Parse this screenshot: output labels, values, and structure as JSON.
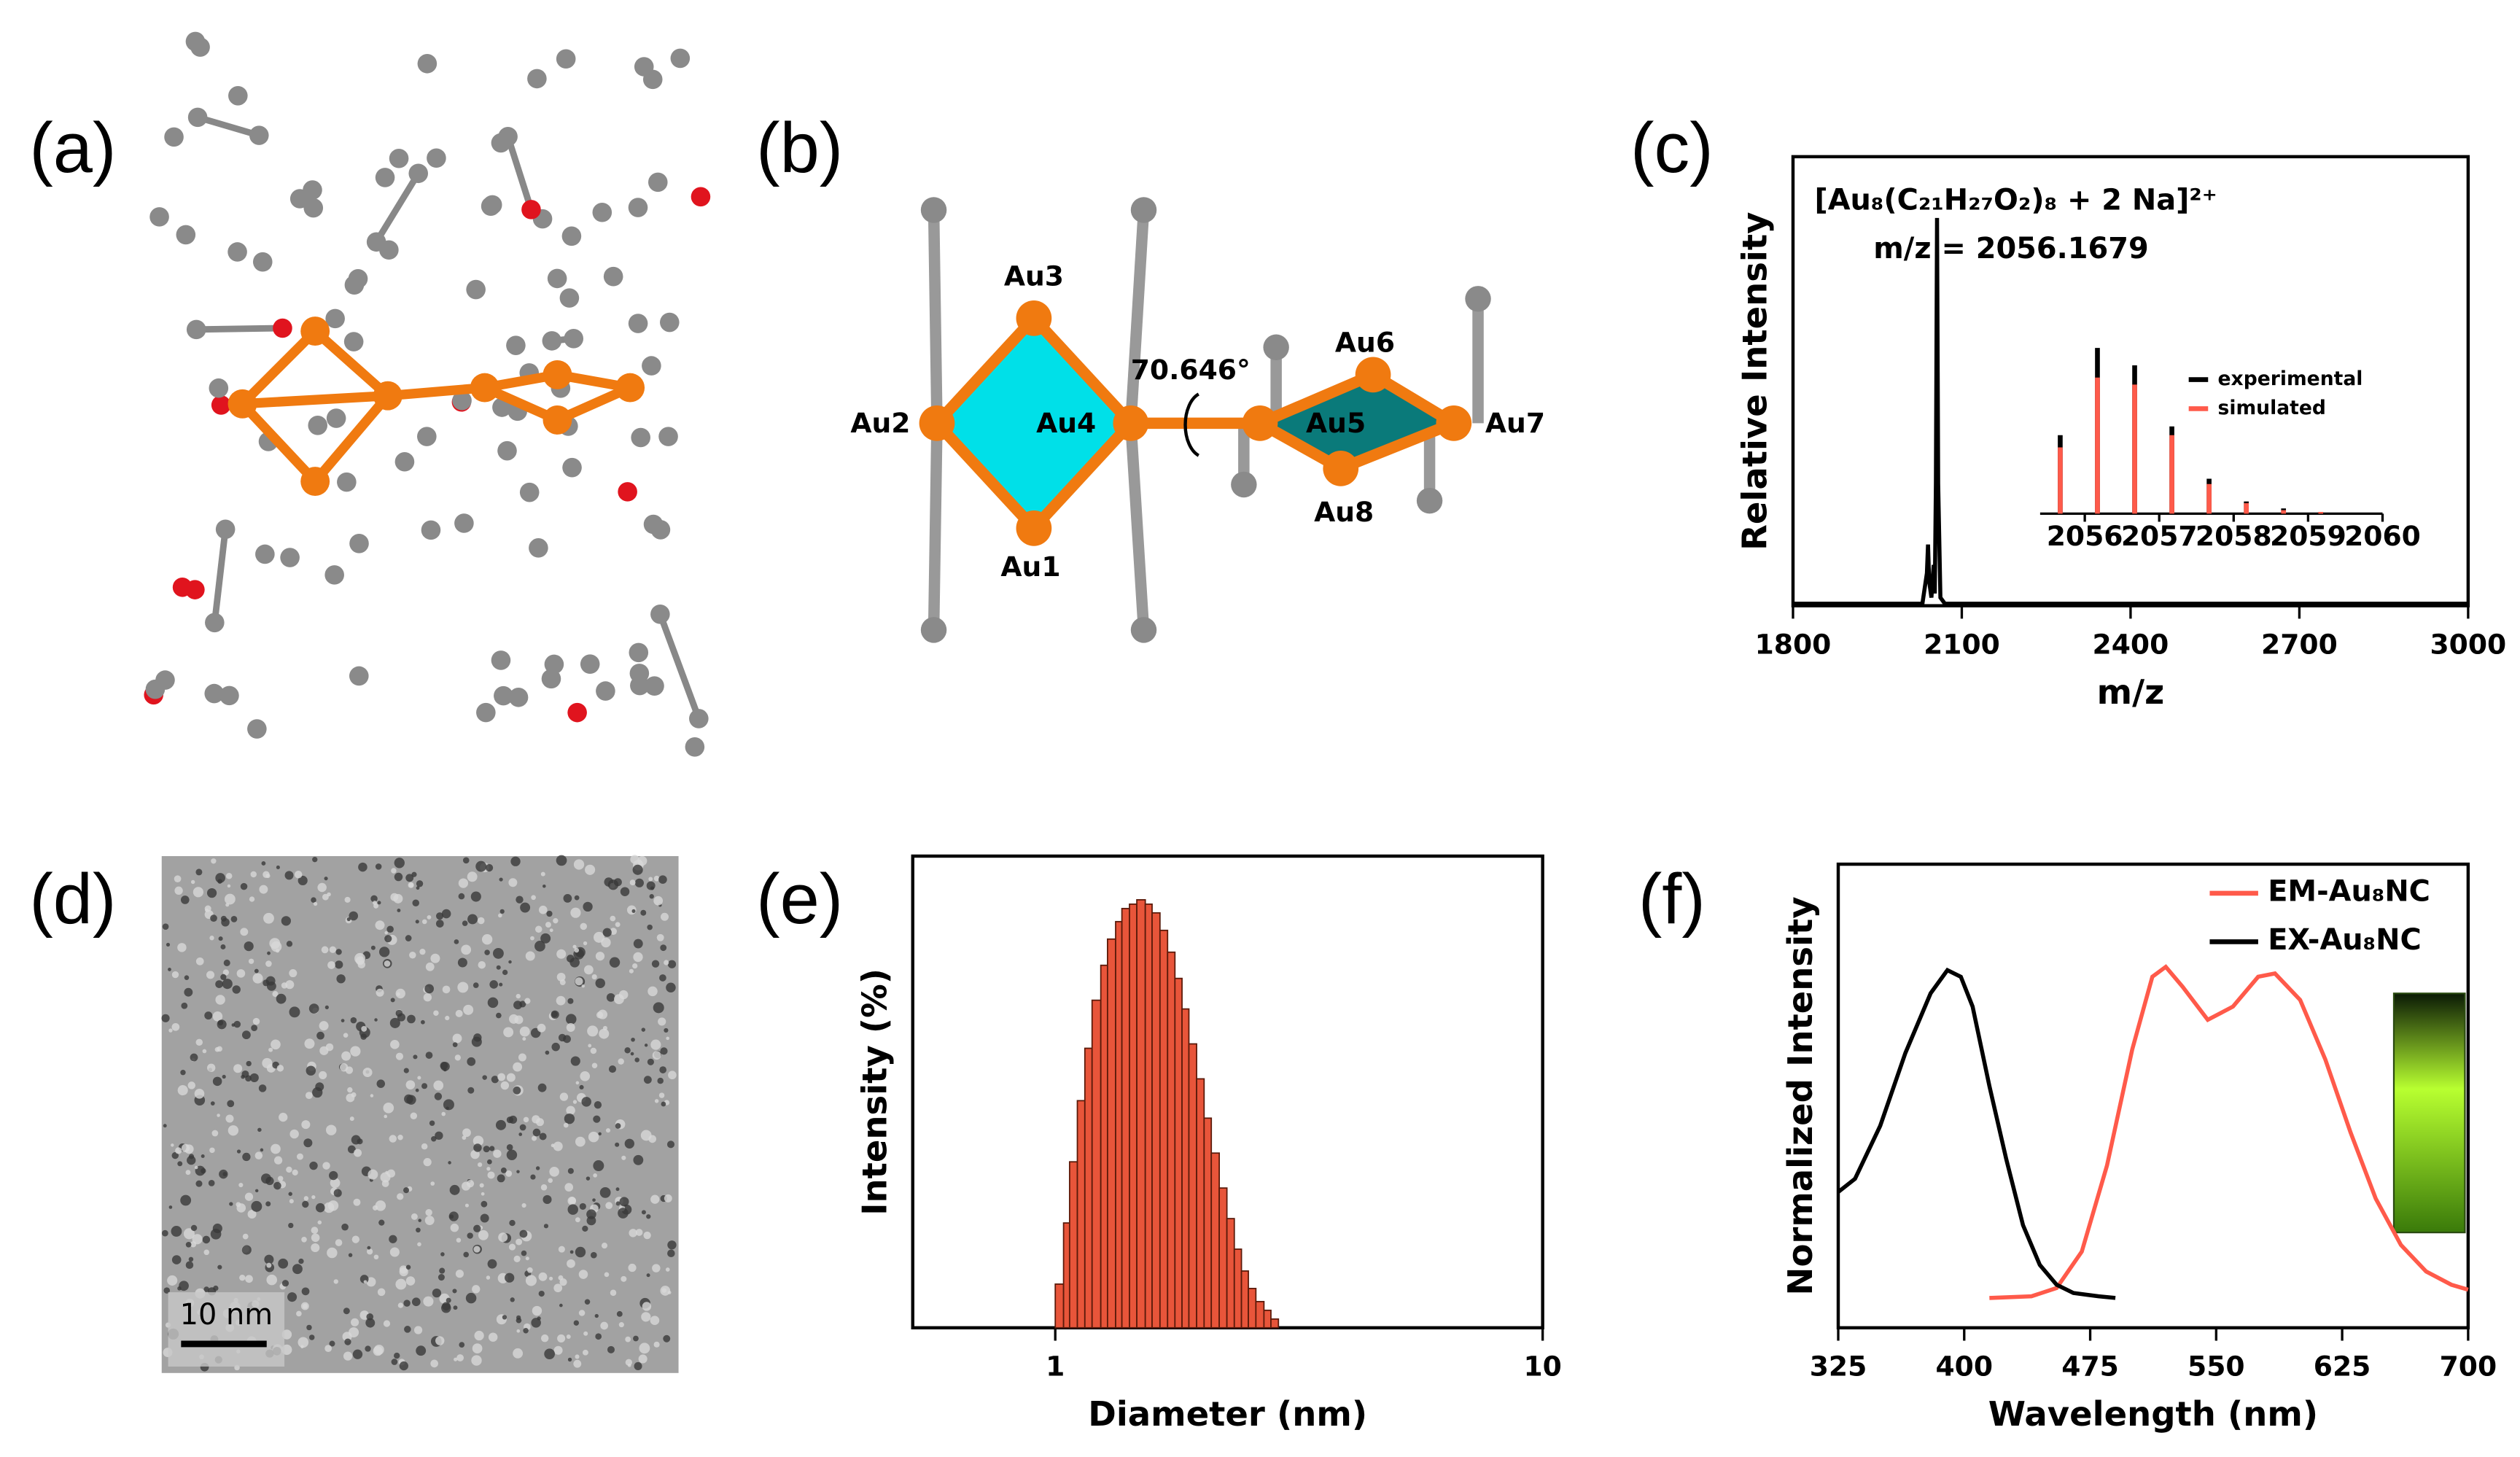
{
  "panel_labels": [
    "(a)",
    "(b)",
    "(c)",
    "(d)",
    "(e)",
    "(f)"
  ],
  "structure_b": {
    "labels": [
      "Au1",
      "Au2",
      "Au3",
      "Au4",
      "Au5",
      "Au6",
      "Au7",
      "Au8"
    ],
    "angle": "70.646°"
  },
  "tem_d": {
    "scale_bar": "10 nm"
  },
  "chart_data": [
    {
      "type": "line",
      "xlabel": "m/z",
      "ylabel": "Relative Intensity",
      "annotations": [
        "[Au₈(C₂₁H₂₇O₂)₈ + 2 Na]²⁺",
        "m/z = 2056.1679"
      ],
      "x": [
        1800,
        2030,
        2038,
        2040,
        2042,
        2046,
        2050,
        2052,
        2054,
        2056,
        2058,
        2062,
        2070,
        3000
      ],
      "values": [
        0.005,
        0.005,
        0.08,
        0.15,
        0.06,
        0.02,
        0.1,
        0.03,
        0.3,
        0.95,
        0.3,
        0.02,
        0.005,
        0.005
      ],
      "color": "#000000",
      "xlim": [
        1800,
        3000
      ],
      "xticks": [
        1800,
        2100,
        2400,
        2700,
        3000
      ],
      "ylim": [
        0,
        1.1
      ]
    },
    {
      "type": "stem",
      "legend": "upper right",
      "x": [
        2055.67,
        2056.17,
        2056.67,
        2057.17,
        2057.67,
        2058.17,
        2058.67,
        2059.17
      ],
      "series": [
        {
          "name": "experimental",
          "color": "#000000",
          "values": [
            0.45,
            0.95,
            0.85,
            0.5,
            0.2,
            0.07,
            0.03,
            0.01
          ]
        },
        {
          "name": "simulated",
          "color": "#ff5a4a",
          "values": [
            0.38,
            0.78,
            0.74,
            0.45,
            0.17,
            0.06,
            0.02,
            0.01
          ]
        }
      ],
      "xlim": [
        2055.4,
        2060
      ],
      "xticks": [
        2056,
        2057,
        2058,
        2059,
        2060
      ],
      "ylim": [
        0,
        1
      ]
    },
    {
      "type": "histogram",
      "xlabel": "Diameter (nm)",
      "ylabel": "Intensity (%)",
      "log_x": true,
      "color": "#e8553a",
      "bins": [
        1.0,
        1.04,
        1.07,
        1.11,
        1.15,
        1.19,
        1.24,
        1.28,
        1.33,
        1.37,
        1.42,
        1.47,
        1.53,
        1.58,
        1.64,
        1.7,
        1.76,
        1.82,
        1.88,
        1.95,
        2.02,
        2.09,
        2.17,
        2.25,
        2.33,
        2.41,
        2.49,
        2.58,
        2.68,
        2.77,
        2.87
      ],
      "values": [
        0.1,
        0.24,
        0.38,
        0.52,
        0.64,
        0.75,
        0.83,
        0.89,
        0.93,
        0.96,
        0.97,
        0.98,
        0.97,
        0.95,
        0.91,
        0.86,
        0.8,
        0.73,
        0.65,
        0.57,
        0.48,
        0.4,
        0.32,
        0.25,
        0.18,
        0.13,
        0.09,
        0.06,
        0.04,
        0.02
      ],
      "xlim": [
        0.51,
        10
      ],
      "xticks": [
        1,
        10
      ],
      "ylim": [
        0,
        1.08
      ]
    },
    {
      "type": "line",
      "xlabel": "Wavelength (nm)",
      "ylabel": "Normalized Intensity",
      "legend": "upper right",
      "series": [
        {
          "name": "EM-Au₈NC",
          "color": "#ff5a4a",
          "x": [
            415,
            440,
            455,
            470,
            485,
            500,
            512,
            520,
            530,
            545,
            560,
            575,
            585,
            600,
            615,
            630,
            645,
            660,
            675,
            690,
            700
          ],
          "values": [
            0,
            0.005,
            0.03,
            0.14,
            0.4,
            0.75,
            0.97,
            1.0,
            0.94,
            0.84,
            0.88,
            0.97,
            0.98,
            0.9,
            0.72,
            0.5,
            0.3,
            0.16,
            0.08,
            0.04,
            0.025
          ]
        },
        {
          "name": "EX-Au₈NC",
          "color": "#000000",
          "x": [
            325,
            335,
            350,
            365,
            380,
            390,
            398,
            405,
            415,
            425,
            435,
            445,
            455,
            465,
            480,
            490
          ],
          "values": [
            0.32,
            0.36,
            0.52,
            0.74,
            0.92,
            0.99,
            0.97,
            0.88,
            0.64,
            0.42,
            0.22,
            0.1,
            0.04,
            0.015,
            0.005,
            0
          ]
        }
      ],
      "xlim": [
        325,
        700
      ],
      "xticks": [
        325,
        400,
        475,
        550,
        625,
        700
      ],
      "ylim": [
        -0.09,
        1.31
      ]
    }
  ]
}
